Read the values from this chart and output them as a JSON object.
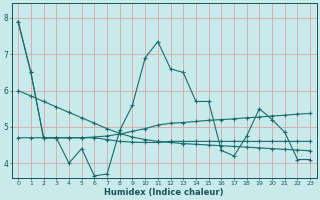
{
  "xlabel": "Humidex (Indice chaleur)",
  "bg_color": "#c8eaea",
  "grid_color": "#d4a8a8",
  "line_color": "#1a6b6b",
  "xlim": [
    -0.5,
    23.5
  ],
  "ylim": [
    3.6,
    8.4
  ],
  "y_main": [
    7.9,
    6.5,
    4.7,
    4.7,
    4.0,
    4.4,
    3.65,
    3.7,
    4.9,
    5.6,
    6.9,
    7.35,
    6.6,
    6.5,
    5.7,
    5.7,
    4.35,
    4.2,
    4.75,
    5.5,
    5.2,
    4.85,
    4.1,
    4.1
  ],
  "y_trend1": [
    7.9,
    6.5,
    4.7,
    4.7,
    4.7,
    4.7,
    4.7,
    4.65,
    4.6,
    4.58,
    4.57,
    4.57,
    4.6,
    4.6,
    4.6,
    4.6,
    4.6,
    4.6,
    4.6,
    4.6,
    4.6,
    4.6,
    4.6,
    4.6
  ],
  "y_trend2": [
    4.7,
    4.7,
    4.7,
    4.7,
    4.7,
    4.7,
    4.72,
    4.75,
    4.8,
    4.88,
    4.95,
    5.05,
    5.1,
    5.12,
    5.15,
    5.18,
    5.2,
    5.22,
    5.25,
    5.27,
    5.3,
    5.32,
    5.35,
    5.37
  ],
  "y_trend3": [
    6.0,
    5.85,
    5.7,
    5.55,
    5.4,
    5.25,
    5.1,
    4.95,
    4.82,
    4.72,
    4.65,
    4.6,
    4.57,
    4.54,
    4.52,
    4.5,
    4.48,
    4.46,
    4.44,
    4.42,
    4.4,
    4.38,
    4.36,
    4.34
  ]
}
